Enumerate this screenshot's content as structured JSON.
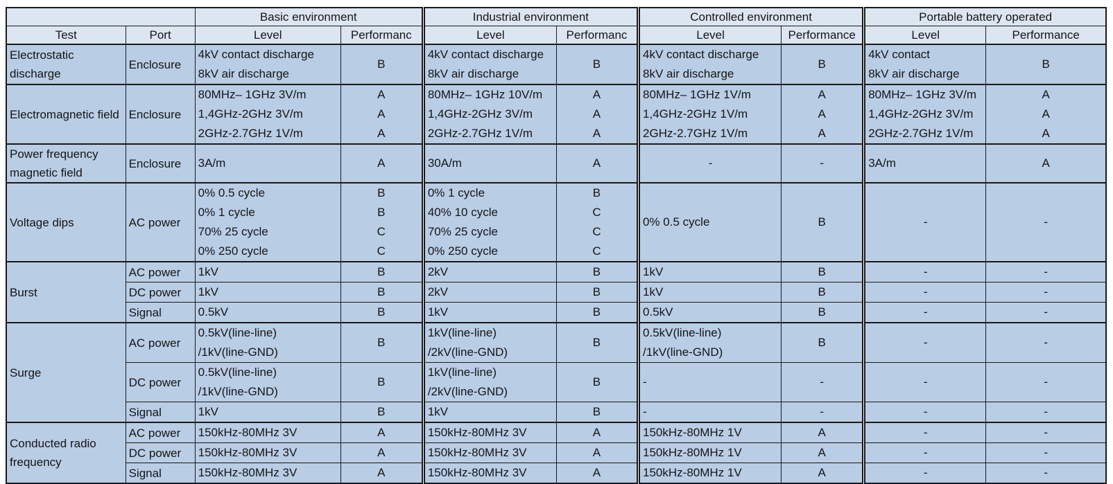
{
  "table": {
    "corner_label": "",
    "col_headers": {
      "test": "Test",
      "port": "Port"
    },
    "env_groups": [
      {
        "label": "Basic environment",
        "level_header": "Level",
        "perf_header": "Performanc"
      },
      {
        "label": "Industrial environment",
        "level_header": "Level",
        "perf_header": "Performanc"
      },
      {
        "label": "Controlled environment",
        "level_header": "Level",
        "perf_header": "Performance"
      },
      {
        "label": "Portable battery operated",
        "level_header": "Level",
        "perf_header": "Performance"
      }
    ],
    "groups": [
      {
        "test": "Electrostatic discharge",
        "rows": [
          {
            "port": "Enclosure",
            "cells": [
              {
                "lines": [
                  "4kV contact discharge",
                  "8kV air discharge"
                ],
                "perf": [
                  "B"
                ]
              },
              {
                "lines": [
                  "4kV contact discharge",
                  "8kV air discharge"
                ],
                "perf": [
                  "B"
                ]
              },
              {
                "lines": [
                  "4kV contact discharge",
                  "8kV air discharge"
                ],
                "perf": [
                  "B"
                ]
              },
              {
                "lines": [
                  "4kV contact",
                  "8kV air discharge"
                ],
                "perf": [
                  "B"
                ]
              }
            ]
          }
        ]
      },
      {
        "test": "Electromagnetic field",
        "rows": [
          {
            "port": "Enclosure",
            "cells": [
              {
                "lines": [
                  "80MHz– 1GHz 3V/m",
                  "1,4GHz-2GHz 3V/m",
                  "2GHz-2.7GHz 1V/m"
                ],
                "perf": [
                  "A",
                  "A",
                  "A"
                ]
              },
              {
                "lines": [
                  "80MHz– 1GHz 10V/m",
                  "1,4GHz-2GHz 3V/m",
                  "2GHz-2.7GHz 1V/m"
                ],
                "perf": [
                  "A",
                  "A",
                  "A"
                ]
              },
              {
                "lines": [
                  "80MHz– 1GHz 1V/m",
                  "1,4GHz-2GHz 1V/m",
                  "2GHz-2.7GHz 1V/m"
                ],
                "perf": [
                  "A",
                  "A",
                  "A"
                ]
              },
              {
                "lines": [
                  "80MHz– 1GHz 3V/m",
                  "1,4GHz-2GHz 3V/m",
                  "2GHz-2.7GHz 1V/m"
                ],
                "perf": [
                  "A",
                  "A",
                  "A"
                ]
              }
            ]
          }
        ]
      },
      {
        "test": "Power frequency magnetic field",
        "rows": [
          {
            "port": "Enclosure",
            "cells": [
              {
                "lines": [
                  "3A/m"
                ],
                "perf": [
                  "A"
                ]
              },
              {
                "lines": [
                  "30A/m"
                ],
                "perf": [
                  "A"
                ]
              },
              {
                "lines": [
                  "-"
                ],
                "align": "center",
                "perf": [
                  "-"
                ]
              },
              {
                "lines": [
                  "3A/m"
                ],
                "perf": [
                  "A"
                ]
              }
            ]
          }
        ]
      },
      {
        "test": "Voltage dips",
        "rows": [
          {
            "port": "AC power",
            "cells": [
              {
                "lines": [
                  "0% 0.5 cycle",
                  "0% 1 cycle",
                  "70% 25 cycle",
                  "0% 250 cycle"
                ],
                "perf": [
                  "B",
                  "B",
                  "C",
                  "C"
                ]
              },
              {
                "lines": [
                  "0% 1 cycle",
                  "40% 10 cycle",
                  "70% 25 cycle",
                  "0% 250 cycle"
                ],
                "perf": [
                  "B",
                  "C",
                  "C",
                  "C"
                ]
              },
              {
                "lines": [
                  "0% 0.5 cycle"
                ],
                "perf": [
                  "B"
                ]
              },
              {
                "lines": [
                  "-"
                ],
                "align": "center",
                "perf": [
                  "-"
                ]
              }
            ]
          }
        ]
      },
      {
        "test": "Burst",
        "rows": [
          {
            "port": "AC power",
            "cells": [
              {
                "lines": [
                  "1kV"
                ],
                "perf": [
                  "B"
                ]
              },
              {
                "lines": [
                  "2kV"
                ],
                "perf": [
                  "B"
                ]
              },
              {
                "lines": [
                  "1kV"
                ],
                "perf": [
                  "B"
                ]
              },
              {
                "lines": [
                  "-"
                ],
                "align": "center",
                "perf": [
                  "-"
                ]
              }
            ]
          },
          {
            "port": "DC power",
            "cells": [
              {
                "lines": [
                  "1kV"
                ],
                "perf": [
                  "B"
                ]
              },
              {
                "lines": [
                  "2kV"
                ],
                "perf": [
                  "B"
                ]
              },
              {
                "lines": [
                  "1kV"
                ],
                "perf": [
                  "B"
                ]
              },
              {
                "lines": [
                  "-"
                ],
                "align": "center",
                "perf": [
                  "-"
                ]
              }
            ]
          },
          {
            "port": "Signal",
            "cells": [
              {
                "lines": [
                  "0.5kV"
                ],
                "perf": [
                  "B"
                ]
              },
              {
                "lines": [
                  "1kV"
                ],
                "perf": [
                  "B"
                ]
              },
              {
                "lines": [
                  "0.5kV"
                ],
                "perf": [
                  "B"
                ]
              },
              {
                "lines": [
                  "-"
                ],
                "align": "center",
                "perf": [
                  "-"
                ]
              }
            ]
          }
        ]
      },
      {
        "test": "Surge",
        "rows": [
          {
            "port": "AC power",
            "cells": [
              {
                "lines": [
                  "0.5kV(line-line)",
                  "/1kV(line-GND)"
                ],
                "perf": [
                  "B"
                ]
              },
              {
                "lines": [
                  "1kV(line-line)",
                  "/2kV(line-GND)"
                ],
                "perf": [
                  "B"
                ]
              },
              {
                "lines": [
                  "0.5kV(line-line)",
                  "/1kV(line-GND)"
                ],
                "perf": [
                  "B"
                ]
              },
              {
                "lines": [
                  "-"
                ],
                "align": "center",
                "perf": [
                  "-"
                ]
              }
            ]
          },
          {
            "port": "DC power",
            "cells": [
              {
                "lines": [
                  "0.5kV(line-line)",
                  "/1kV(line-GND)"
                ],
                "perf": [
                  "B"
                ]
              },
              {
                "lines": [
                  "1kV(line-line)",
                  "/2kV(line-GND)"
                ],
                "perf": [
                  "B"
                ]
              },
              {
                "lines": [
                  "-"
                ],
                "perf": [
                  "-"
                ]
              },
              {
                "lines": [
                  "-"
                ],
                "align": "center",
                "perf": [
                  "-"
                ]
              }
            ]
          },
          {
            "port": "Signal",
            "cells": [
              {
                "lines": [
                  "1kV"
                ],
                "perf": [
                  "B"
                ]
              },
              {
                "lines": [
                  "1kV"
                ],
                "perf": [
                  "B"
                ]
              },
              {
                "lines": [
                  "-"
                ],
                "perf": [
                  "-"
                ]
              },
              {
                "lines": [
                  "-"
                ],
                "align": "center",
                "perf": [
                  "-"
                ]
              }
            ]
          }
        ]
      },
      {
        "test": "Conducted radio frequency",
        "rows": [
          {
            "port": "AC power",
            "cells": [
              {
                "lines": [
                  "150kHz-80MHz 3V"
                ],
                "perf": [
                  "A"
                ]
              },
              {
                "lines": [
                  "150kHz-80MHz 3V"
                ],
                "perf": [
                  "A"
                ]
              },
              {
                "lines": [
                  "150kHz-80MHz 1V"
                ],
                "perf": [
                  "A"
                ]
              },
              {
                "lines": [
                  "-"
                ],
                "align": "center",
                "perf": [
                  "-"
                ]
              }
            ]
          },
          {
            "port": "DC power",
            "cells": [
              {
                "lines": [
                  "150kHz-80MHz 3V"
                ],
                "perf": [
                  "A"
                ]
              },
              {
                "lines": [
                  "150kHz-80MHz 3V"
                ],
                "perf": [
                  "A"
                ]
              },
              {
                "lines": [
                  "150kHz-80MHz 1V"
                ],
                "perf": [
                  "A"
                ]
              },
              {
                "lines": [
                  "-"
                ],
                "align": "center",
                "perf": [
                  "-"
                ]
              }
            ]
          },
          {
            "port": "Signal",
            "cells": [
              {
                "lines": [
                  "150kHz-80MHz 3V"
                ],
                "perf": [
                  "A"
                ]
              },
              {
                "lines": [
                  "150kHz-80MHz 3V"
                ],
                "perf": [
                  "A"
                ]
              },
              {
                "lines": [
                  "150kHz-80MHz 1V"
                ],
                "perf": [
                  "A"
                ]
              },
              {
                "lines": [
                  "-"
                ],
                "align": "center",
                "perf": [
                  "-"
                ]
              }
            ]
          }
        ]
      }
    ],
    "colors": {
      "header_bg": "#dce6f1",
      "body_bg": "#b9cde5",
      "border": "#1a1a1a"
    }
  }
}
